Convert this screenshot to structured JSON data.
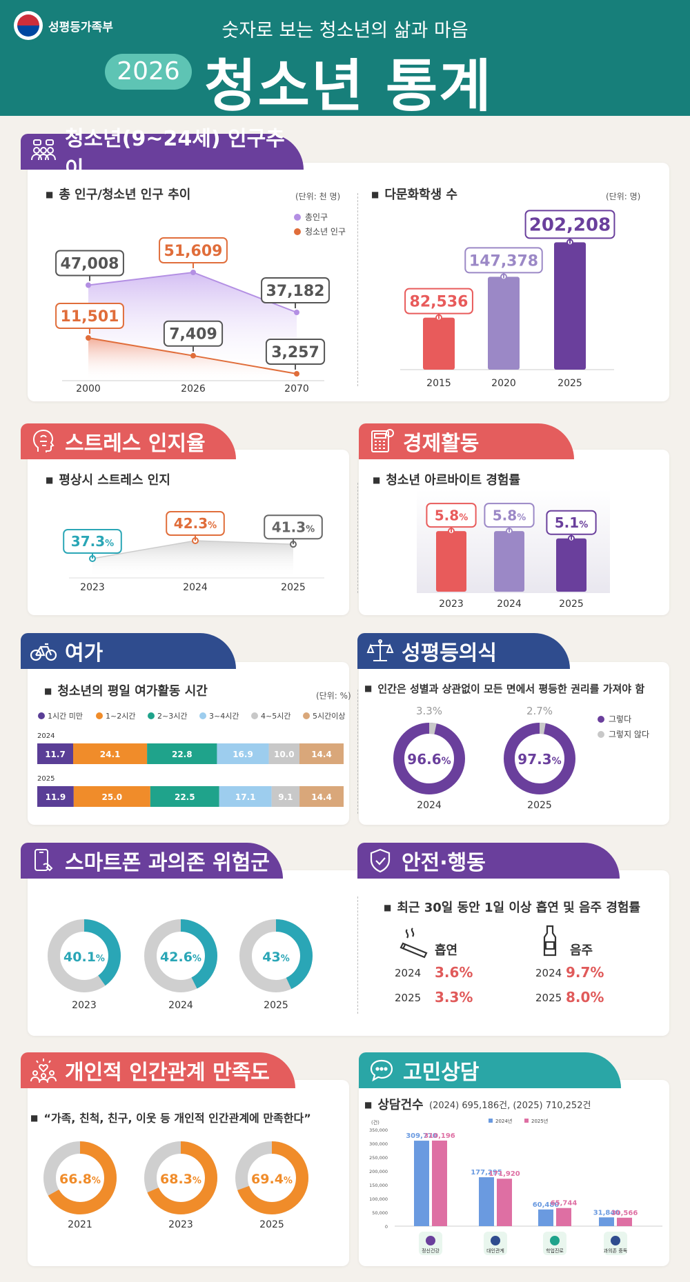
{
  "header": {
    "ministry": "성평등가족부",
    "subtitle": "숫자로 보는 청소년의 삶과 마음",
    "year": "2026",
    "title": "청소년 통계"
  },
  "sections": {
    "population": "청소년(9~24세) 인구추이",
    "stress": "스트레스 인지율",
    "economy": "경제활동",
    "leisure": "여가",
    "gender": "성평등의식",
    "smartphone": "스마트폰 과의존 위험군",
    "safety": "안전·행동",
    "relations": "개인적 인간관계 만족도",
    "counsel": "고민상담"
  },
  "population": {
    "subtitle": "총 인구/청소년 인구 추이",
    "unit": "(단위: 천 명)",
    "legend_total": "총인구",
    "legend_youth": "청소년 인구"
  },
  "multicultural": {
    "subtitle": "다문화학생 수",
    "unit": "(단위: 명)"
  },
  "stress_chart": {
    "subtitle": "평상시 스트레스 인지"
  },
  "economy_chart": {
    "subtitle": "청소년 아르바이트 경험률"
  },
  "leisure_chart": {
    "subtitle": "청소년의 평일 여가활동 시간",
    "unit": "(단위: %)"
  },
  "gender_chart": {
    "subtitle": "인간은 성별과 상관없이 모든 면에서 평등한 권리를 가져야 함",
    "legend_yes": "그렇다",
    "legend_no": "그렇지 않다"
  },
  "safety_chart": {
    "subtitle": "최근 30일 동안 1일 이상 흡연 및 음주 경험률",
    "smoke_label": "흡연",
    "drink_label": "음주",
    "rows": [
      {
        "year": "2024",
        "smoke": "3.6%",
        "drink": "9.7%"
      },
      {
        "year": "2025",
        "smoke": "3.3%",
        "drink": "8.0%"
      }
    ]
  },
  "relations_chart": {
    "subtitle": "“가족, 친척, 친구, 이웃 등 개인적 인간관계에 만족한다”"
  },
  "counsel_chart": {
    "subtitle": "상담건수",
    "summary": "(2024) 695,186건, (2025) 710,252건",
    "unit": "(건)"
  },
  "chart_data": [
    {
      "type": "line",
      "x": [
        "2000",
        "2026",
        "2070"
      ],
      "series": [
        {
          "name": "총인구",
          "values": [
            47008,
            51609,
            37182
          ],
          "color": "#b38fe3",
          "labels": [
            "47,008",
            "51,609",
            "37,182"
          ]
        },
        {
          "name": "청소년 인구",
          "values": [
            11501,
            7409,
            3257
          ],
          "color": "#e06d3a",
          "labels": [
            "11,501",
            "7,409",
            "3,257"
          ]
        }
      ]
    },
    {
      "type": "bar",
      "categories": [
        "2015",
        "2020",
        "2025"
      ],
      "values": [
        82536,
        147378,
        202208
      ],
      "labels": [
        "82,536",
        "147,378",
        "202,208"
      ],
      "colors": [
        "#e85b5b",
        "#9b88c6",
        "#6a3f9c"
      ]
    },
    {
      "type": "line",
      "x": [
        "2023",
        "2024",
        "2025"
      ],
      "values": [
        37.3,
        42.3,
        41.3
      ],
      "labels": [
        "37.3",
        "42.3",
        "41.3"
      ],
      "colors": [
        "#2aa6b6",
        "#e06d3a",
        "#666666"
      ]
    },
    {
      "type": "bar",
      "categories": [
        "2023",
        "2024",
        "2025"
      ],
      "values": [
        5.8,
        5.8,
        5.1
      ],
      "labels": [
        "5.8",
        "5.8",
        "5.1"
      ],
      "colors": [
        "#e85b5b",
        "#9b88c6",
        "#6a3f9c"
      ]
    },
    {
      "type": "bar",
      "stacked": true,
      "categories": [
        "2024",
        "2025"
      ],
      "series": [
        {
          "name": "1시간 미만",
          "values": [
            11.7,
            11.9
          ],
          "color": "#5a3e96"
        },
        {
          "name": "1~2시간",
          "values": [
            24.1,
            25.0
          ],
          "color": "#f08c2a"
        },
        {
          "name": "2~3시간",
          "values": [
            22.8,
            22.5
          ],
          "color": "#1fa38b"
        },
        {
          "name": "3~4시간",
          "values": [
            16.9,
            17.1
          ],
          "color": "#9dcdee"
        },
        {
          "name": "4~5시간",
          "values": [
            10.0,
            9.1
          ],
          "color": "#c8c8c8"
        },
        {
          "name": "5시간이상",
          "values": [
            14.4,
            14.4
          ],
          "color": "#d9a77a"
        }
      ]
    },
    {
      "type": "pie",
      "categories": [
        "2024",
        "2025"
      ],
      "series": [
        {
          "name": "그렇다",
          "values": [
            96.6,
            97.3
          ],
          "labels": [
            "96.6",
            "97.3"
          ],
          "color": "#6a3f9c"
        },
        {
          "name": "그렇지 않다",
          "values": [
            3.3,
            2.7
          ],
          "labels": [
            "3.3%",
            "2.7%"
          ],
          "color": "#c8c8c8"
        }
      ]
    },
    {
      "type": "pie",
      "categories": [
        "2023",
        "2024",
        "2025"
      ],
      "values": [
        40.1,
        42.6,
        43
      ],
      "labels": [
        "40.1",
        "42.6",
        "43"
      ],
      "color": "#2aa6b6"
    },
    {
      "type": "pie",
      "categories": [
        "2021",
        "2023",
        "2025"
      ],
      "values": [
        66.8,
        68.3,
        69.4
      ],
      "labels": [
        "66.8",
        "68.3",
        "69.4"
      ],
      "color": "#f08c2a"
    },
    {
      "type": "bar",
      "categories": [
        "정신건강",
        "대인관계",
        "학업진로",
        "과의존 중독"
      ],
      "ylim": [
        0,
        350000
      ],
      "yticks": [
        "350,000",
        "300,000",
        "250,000",
        "200,000",
        "150,000",
        "100,000",
        "50,000",
        "0"
      ],
      "series": [
        {
          "name": "2024년",
          "values": [
            309770,
            177295,
            60480,
            31840
          ],
          "labels": [
            "309,770",
            "177,295",
            "60,480",
            "31,840"
          ],
          "color": "#6a9ae0"
        },
        {
          "name": "2025년",
          "values": [
            310196,
            171920,
            65744,
            30566
          ],
          "labels": [
            "310,196",
            "171,920",
            "65,744",
            "30,566"
          ],
          "color": "#de6fa3"
        }
      ]
    }
  ]
}
